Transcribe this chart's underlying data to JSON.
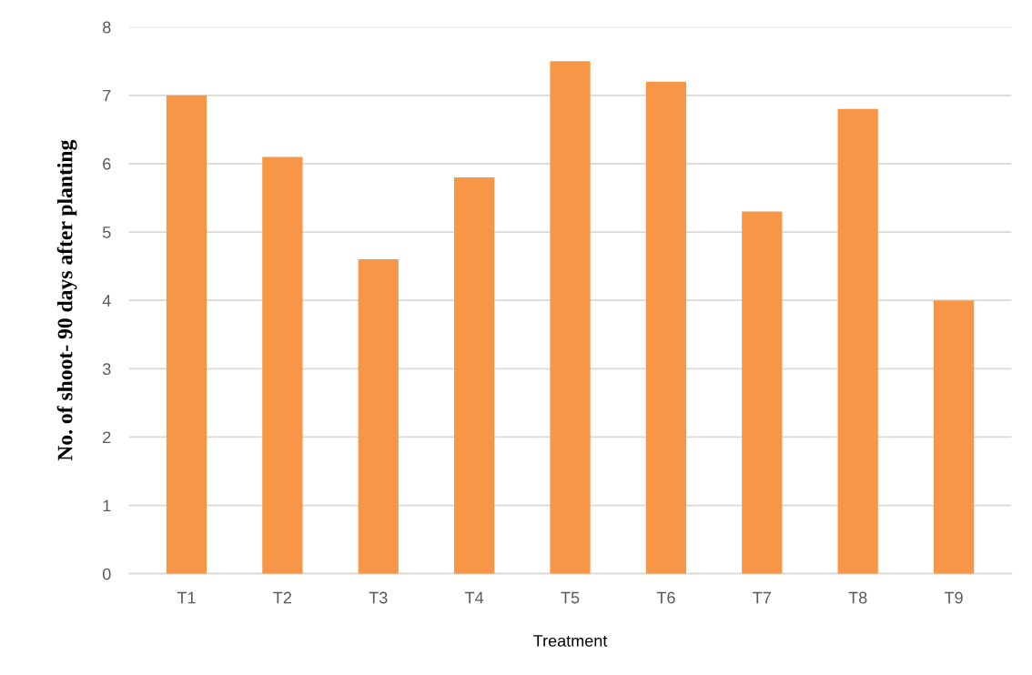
{
  "chart_data": {
    "type": "bar",
    "xlabel": "Treatment",
    "ylabel": "No. of shoot- 90 days after planting",
    "categories": [
      "T1",
      "T2",
      "T3",
      "T4",
      "T5",
      "T6",
      "T7",
      "T8",
      "T9"
    ],
    "values": [
      7.0,
      6.1,
      4.6,
      5.8,
      7.5,
      7.2,
      5.3,
      6.8,
      4.0
    ],
    "color": "#f79646",
    "ylim": [
      0,
      8
    ],
    "yticks": [
      0,
      1,
      2,
      3,
      4,
      5,
      6,
      7,
      8
    ],
    "grid": "y"
  }
}
